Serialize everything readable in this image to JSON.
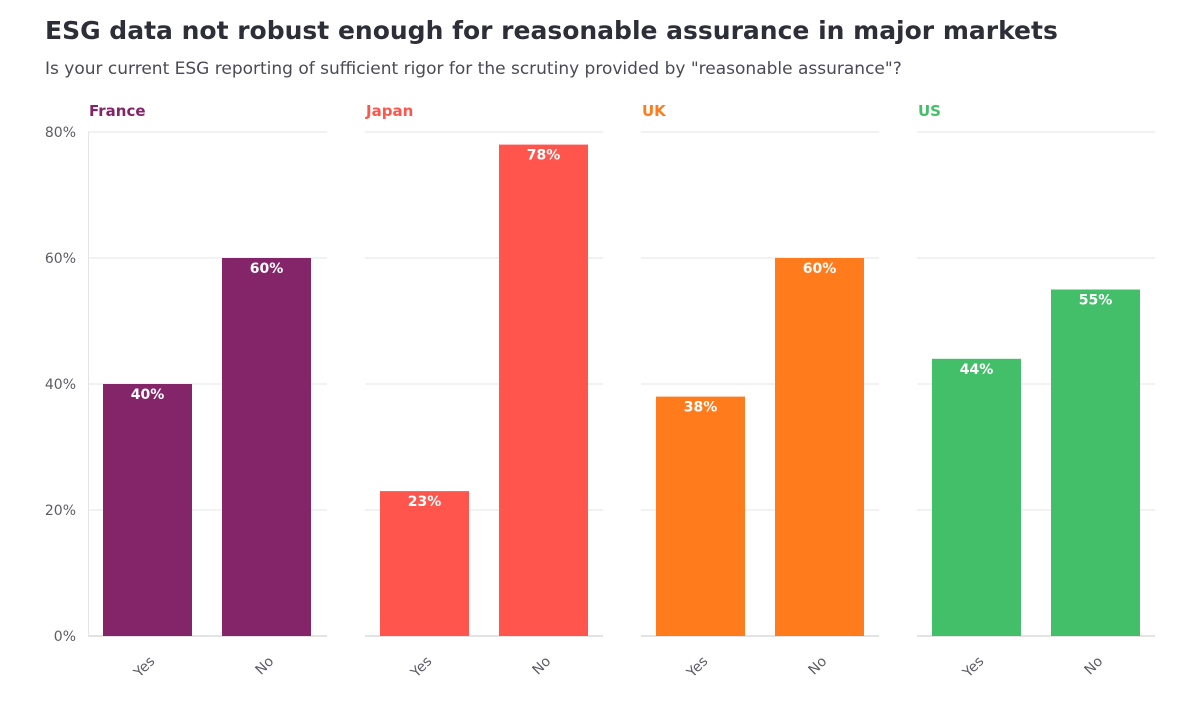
{
  "chart_data": {
    "type": "bar",
    "title": "ESG data not robust enough for reasonable assurance in major markets",
    "subtitle": "Is your current ESG reporting of sufficient rigor for the scrutiny provided by \"reasonable assurance\"?",
    "categories": [
      "Yes",
      "No"
    ],
    "ylim": [
      0,
      80
    ],
    "yticks": [
      0,
      20,
      40,
      60,
      80
    ],
    "ytick_labels": [
      "0%",
      "20%",
      "40%",
      "60%",
      "80%"
    ],
    "grid": true,
    "panels": [
      {
        "name": "France",
        "color": "#842469",
        "values": [
          40,
          60
        ],
        "labels": [
          "40%",
          "60%"
        ]
      },
      {
        "name": "Japan",
        "color": "#ff554c",
        "values": [
          23,
          78
        ],
        "labels": [
          "23%",
          "78%"
        ]
      },
      {
        "name": "UK",
        "color": "#ff7b1c",
        "values": [
          38,
          60
        ],
        "labels": [
          "38%",
          "60%"
        ]
      },
      {
        "name": "US",
        "color": "#43bf6a",
        "values": [
          44,
          55
        ],
        "labels": [
          "44%",
          "55%"
        ]
      }
    ]
  }
}
